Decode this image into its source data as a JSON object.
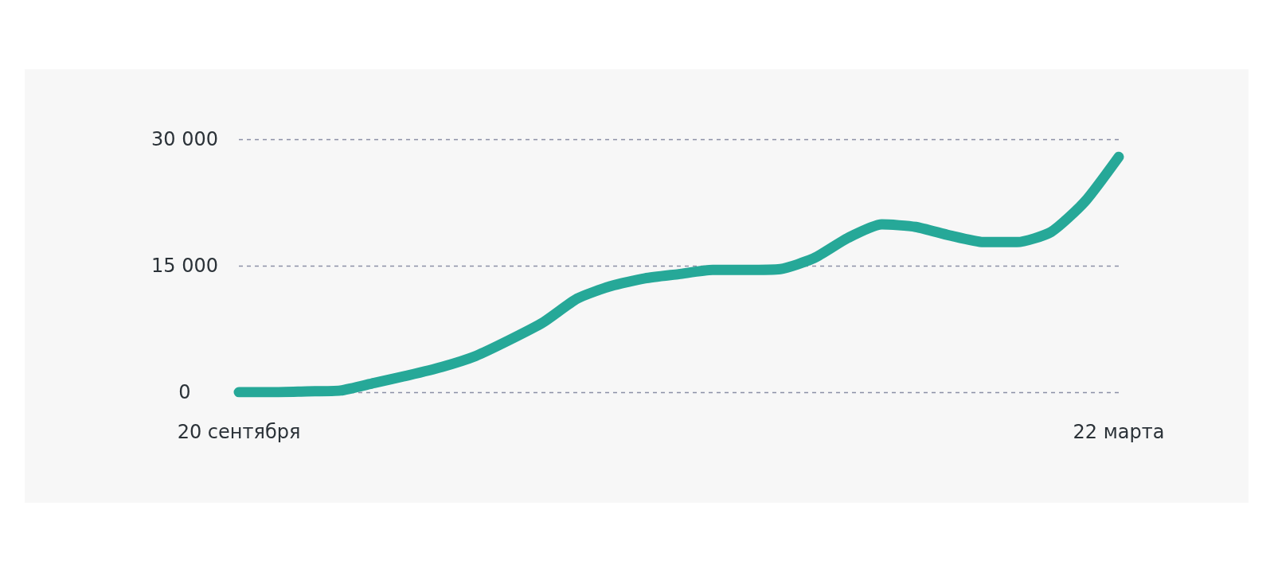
{
  "chart_data": {
    "type": "line",
    "categories": [
      "20 сентября",
      null,
      null,
      null,
      null,
      null,
      null,
      null,
      null,
      null,
      null,
      null,
      null,
      null,
      null,
      null,
      null,
      null,
      null,
      null,
      null,
      null,
      null,
      null,
      null,
      null,
      "22 марта"
    ],
    "series": [
      {
        "color": "#26a898",
        "values": [
          0,
          0,
          100,
          200,
          1100,
          2000,
          3000,
          4300,
          6200,
          8300,
          11100,
          12600,
          13500,
          14000,
          14500,
          14500,
          14600,
          15900,
          18300,
          19900,
          19600,
          18600,
          17800,
          17800,
          19000,
          22600,
          27900
        ]
      }
    ],
    "ylim": [
      0,
      30000
    ],
    "yticks": [
      {
        "value": 0,
        "label": "0"
      },
      {
        "value": 15000,
        "label": "15 000"
      },
      {
        "value": 30000,
        "label": "30 000"
      }
    ],
    "grid": "y",
    "marker": "none"
  }
}
